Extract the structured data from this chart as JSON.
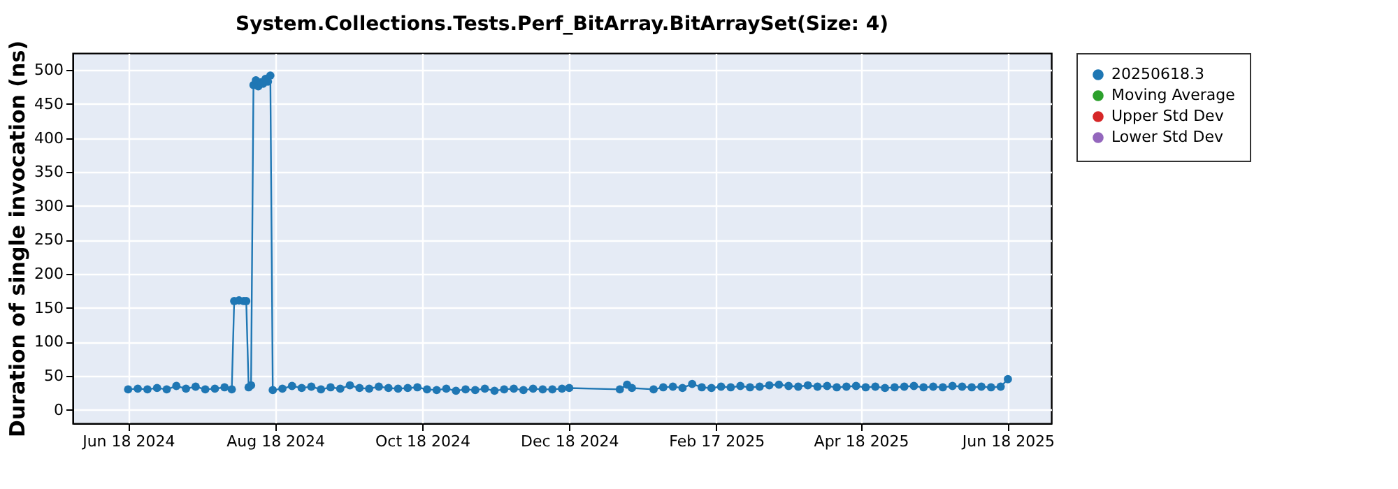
{
  "chart_data": {
    "type": "line",
    "title": "System.Collections.Tests.Perf_BitArray.BitArraySet(Size: 4)",
    "ylabel": "Duration of single invocation (ns)",
    "xlim": [
      "2024-05-26",
      "2025-07-06"
    ],
    "xticks": [
      {
        "value": "2024-06-18",
        "label": "Jun 18 2024"
      },
      {
        "value": "2024-08-18",
        "label": "Aug 18 2024"
      },
      {
        "value": "2024-10-18",
        "label": "Oct 18 2024"
      },
      {
        "value": "2024-12-18",
        "label": "Dec 18 2024"
      },
      {
        "value": "2025-02-17",
        "label": "Feb 17 2025"
      },
      {
        "value": "2025-04-18",
        "label": "Apr 18 2025"
      },
      {
        "value": "2025-06-18",
        "label": "Jun 18 2025"
      }
    ],
    "ylim": [
      -20,
      525
    ],
    "yticks": [
      0,
      50,
      100,
      150,
      200,
      250,
      300,
      350,
      400,
      450,
      500
    ],
    "grid": true,
    "legend": "right",
    "marker": "circle",
    "line_style": "solid",
    "series": [
      {
        "name": "20250618.3",
        "color": "#1f77b4",
        "x": [
          "2024-06-18",
          "2024-06-22",
          "2024-06-26",
          "2024-06-30",
          "2024-07-04",
          "2024-07-08",
          "2024-07-12",
          "2024-07-16",
          "2024-07-20",
          "2024-07-24",
          "2024-07-28",
          "2024-07-31",
          "2024-08-01",
          "2024-08-03",
          "2024-08-05",
          "2024-08-06",
          "2024-08-07",
          "2024-08-08",
          "2024-08-09",
          "2024-08-10",
          "2024-08-11",
          "2024-08-12",
          "2024-08-13",
          "2024-08-14",
          "2024-08-15",
          "2024-08-16",
          "2024-08-17",
          "2024-08-21",
          "2024-08-25",
          "2024-08-29",
          "2024-09-02",
          "2024-09-06",
          "2024-09-10",
          "2024-09-14",
          "2024-09-18",
          "2024-09-22",
          "2024-09-26",
          "2024-09-30",
          "2024-10-04",
          "2024-10-08",
          "2024-10-12",
          "2024-10-16",
          "2024-10-20",
          "2024-10-24",
          "2024-10-28",
          "2024-11-01",
          "2024-11-05",
          "2024-11-09",
          "2024-11-13",
          "2024-11-17",
          "2024-11-21",
          "2024-11-25",
          "2024-11-29",
          "2024-12-03",
          "2024-12-07",
          "2024-12-11",
          "2024-12-15",
          "2024-12-18",
          "2025-01-08",
          "2025-01-11",
          "2025-01-13",
          "2025-01-22",
          "2025-01-26",
          "2025-01-30",
          "2025-02-03",
          "2025-02-07",
          "2025-02-11",
          "2025-02-15",
          "2025-02-19",
          "2025-02-23",
          "2025-02-27",
          "2025-03-03",
          "2025-03-07",
          "2025-03-11",
          "2025-03-15",
          "2025-03-19",
          "2025-03-23",
          "2025-03-27",
          "2025-03-31",
          "2025-04-04",
          "2025-04-08",
          "2025-04-12",
          "2025-04-16",
          "2025-04-20",
          "2025-04-24",
          "2025-04-28",
          "2025-05-02",
          "2025-05-06",
          "2025-05-10",
          "2025-05-14",
          "2025-05-18",
          "2025-05-22",
          "2025-05-26",
          "2025-05-30",
          "2025-06-03",
          "2025-06-07",
          "2025-06-11",
          "2025-06-15",
          "2025-06-18"
        ],
        "values": [
          30,
          31,
          30,
          32,
          30,
          35,
          31,
          34,
          30,
          31,
          33,
          30,
          160,
          161,
          160,
          160,
          33,
          36,
          478,
          485,
          476,
          482,
          480,
          487,
          483,
          492,
          29,
          31,
          35,
          32,
          34,
          30,
          33,
          31,
          36,
          32,
          31,
          34,
          32,
          31,
          32,
          33,
          30,
          29,
          31,
          28,
          30,
          29,
          31,
          28,
          30,
          31,
          29,
          31,
          30,
          30,
          31,
          32,
          30,
          37,
          32,
          30,
          33,
          34,
          32,
          38,
          33,
          32,
          34,
          33,
          35,
          33,
          34,
          36,
          37,
          35,
          34,
          36,
          34,
          35,
          33,
          34,
          35,
          33,
          34,
          32,
          33,
          34,
          35,
          33,
          34,
          33,
          35,
          34,
          33,
          34,
          33,
          34,
          45
        ]
      },
      {
        "name": "Moving Average",
        "color": "#2ca02c"
      },
      {
        "name": "Upper Std Dev",
        "color": "#d62728"
      },
      {
        "name": "Lower Std Dev",
        "color": "#9467bd"
      }
    ]
  }
}
